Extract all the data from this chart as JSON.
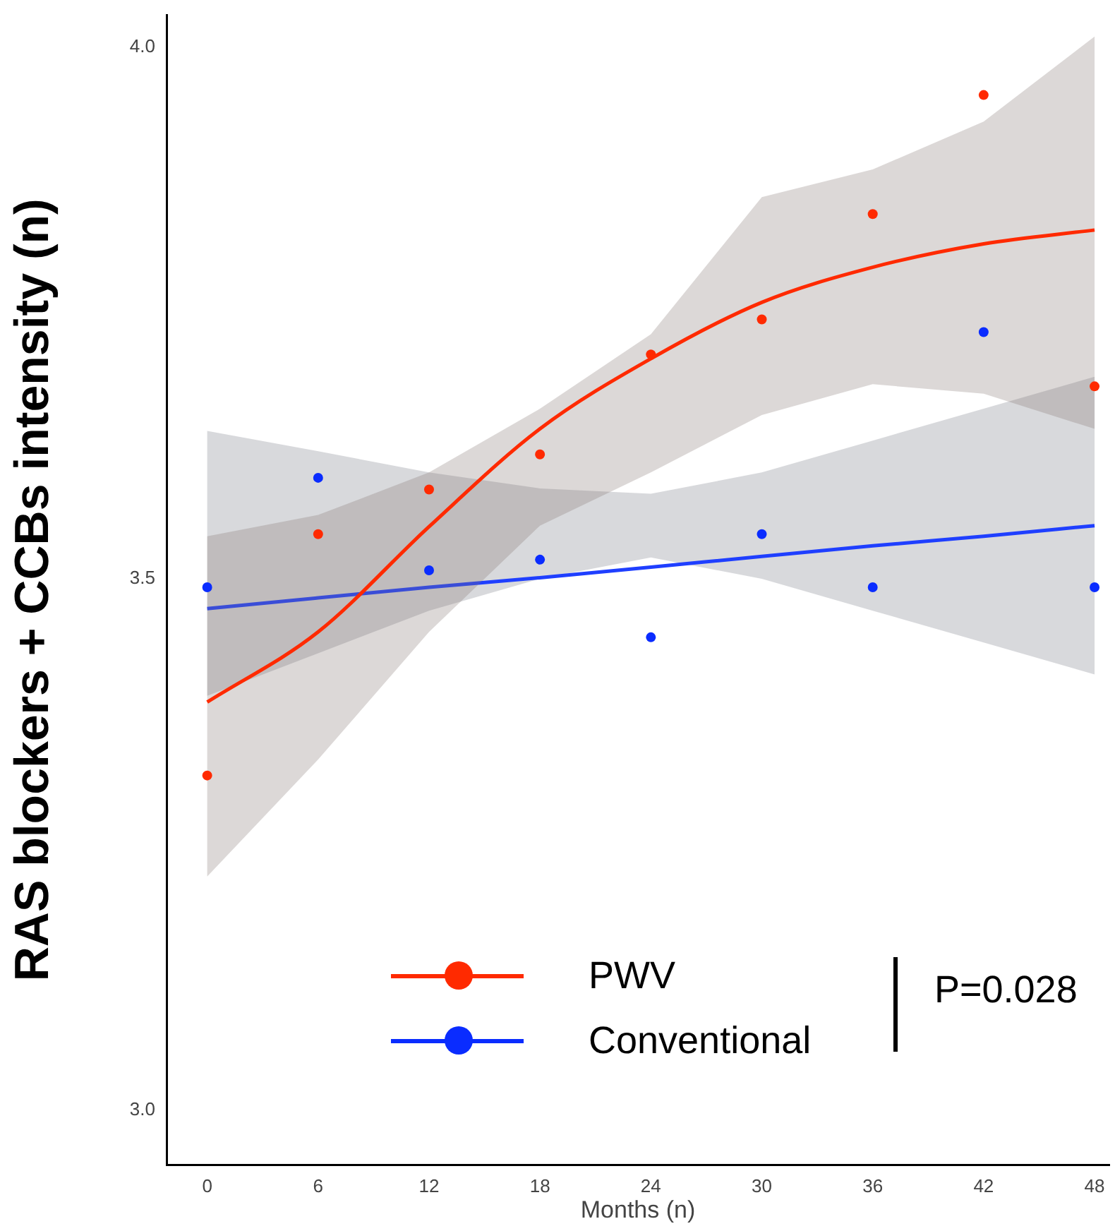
{
  "chart_data": {
    "type": "scatter",
    "xlabel": "Months (n)",
    "ylabel": "RAS blockers + CCBs intensity (n)",
    "xlim": [
      -2.2,
      48.8
    ],
    "xticks": [
      0,
      6,
      12,
      18,
      24,
      30,
      36,
      42,
      48
    ],
    "ylim": [
      2.949,
      4.03
    ],
    "yticks": [
      {
        "value": 3,
        "label": "3.0"
      },
      {
        "value": 3.5,
        "label": "3.5"
      },
      {
        "value": 4,
        "label": "4.0"
      }
    ],
    "grid": false,
    "legend": "bottom",
    "annotations": [
      "P=0.028"
    ],
    "x": [
      0,
      6,
      12,
      18,
      24,
      30,
      36,
      42,
      48
    ],
    "series": [
      {
        "name": "PWV",
        "marker": "circle",
        "color": "#ff2a00",
        "values": [
          3.315,
          3.542,
          3.584,
          3.617,
          3.711,
          3.744,
          3.843,
          3.955,
          3.681
        ]
      },
      {
        "name": "Conventional",
        "marker": "circle",
        "color": "#0a2cff",
        "values": [
          3.492,
          3.595,
          3.508,
          3.518,
          3.445,
          3.542,
          3.492,
          3.732,
          3.492
        ]
      },
      {
        "type": "line",
        "marker": "none",
        "color": "#ff2a00",
        "values": [
          3.384,
          3.45,
          3.549,
          3.641,
          3.707,
          3.76,
          3.793,
          3.815,
          3.828
        ],
        "lower": [
          3.22,
          3.33,
          3.45,
          3.55,
          3.6,
          3.654,
          3.683,
          3.674,
          3.641
        ],
        "upper": [
          3.54,
          3.56,
          3.6,
          3.66,
          3.73,
          3.859,
          3.885,
          3.93,
          4.01
        ]
      },
      {
        "type": "line",
        "marker": "none",
        "color": "#1f3fff",
        "values": [
          3.472,
          3.482,
          3.492,
          3.501,
          3.511,
          3.521,
          3.531,
          3.54,
          3.55
        ],
        "lower": [
          3.39,
          3.43,
          3.47,
          3.5,
          3.52,
          3.5,
          3.47,
          3.44,
          3.41
        ],
        "upper": [
          3.639,
          3.62,
          3.6,
          3.585,
          3.58,
          3.6,
          3.63,
          3.66,
          3.69
        ]
      }
    ]
  }
}
